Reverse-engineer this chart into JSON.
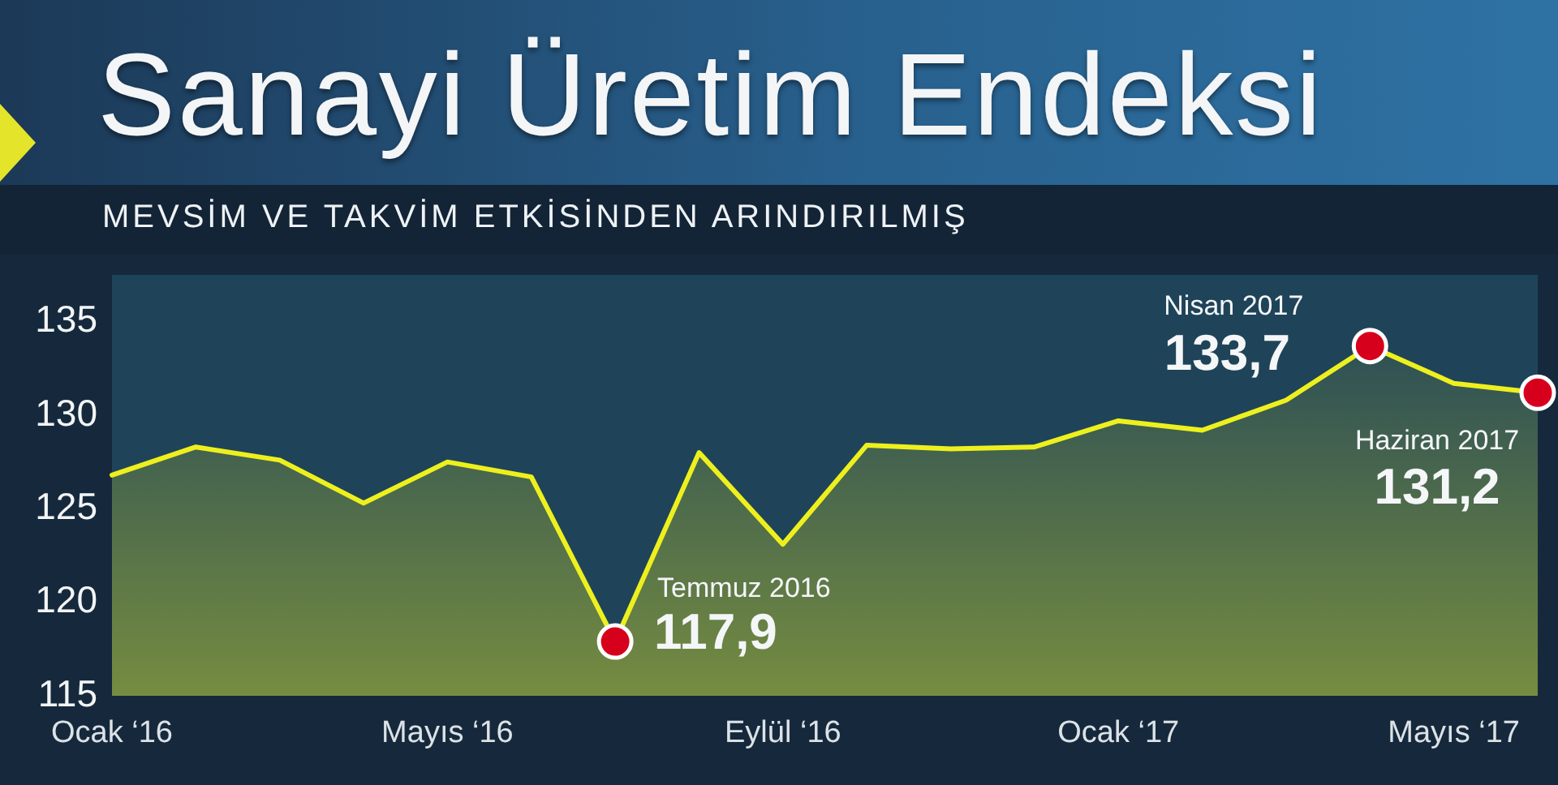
{
  "chart_data": {
    "type": "area",
    "title": "Sanayi Üretim Endeksi",
    "subtitle": "MEVSİM VE TAKVİM ETKİSİNDEN ARINDIRILMIŞ",
    "x": [
      "2016-01",
      "2016-02",
      "2016-03",
      "2016-04",
      "2016-05",
      "2016-06",
      "2016-07",
      "2016-08",
      "2016-09",
      "2016-10",
      "2016-11",
      "2016-12",
      "2017-01",
      "2017-02",
      "2017-03",
      "2017-04",
      "2017-05",
      "2017-06"
    ],
    "series": [
      {
        "color": "#eef01e",
        "marker": "none",
        "values": [
          126.8,
          128.3,
          127.6,
          125.3,
          127.5,
          126.7,
          117.9,
          128.0,
          123.1,
          128.4,
          128.2,
          128.3,
          129.7,
          129.2,
          130.8,
          133.7,
          131.7,
          131.2
        ]
      },
      {
        "type": "scatter",
        "color": "#d6001c",
        "marker": "circle",
        "x": [
          "2016-07",
          "2017-04",
          "2017-06"
        ],
        "values": [
          117.9,
          133.7,
          131.2
        ],
        "value_labels": [
          "117,9",
          "133,7",
          "131,2"
        ]
      }
    ],
    "annotations": [
      {
        "text": "Temmuz 2016",
        "x": "2016-07",
        "y": 117.9
      },
      {
        "text": "Nisan 2017",
        "x": "2017-04",
        "y": 133.7
      },
      {
        "text": "Haziran 2017",
        "x": "2017-06",
        "y": 131.2
      }
    ],
    "xlim": [
      "2016-01",
      "2017-06"
    ],
    "xticks": [
      {
        "value": "2016-01",
        "label": "Ocak ‘16"
      },
      {
        "value": "2016-05",
        "label": "Mayıs ‘16"
      },
      {
        "value": "2016-09",
        "label": "Eylül ‘16"
      },
      {
        "value": "2017-01",
        "label": "Ocak ‘17"
      },
      {
        "value": "2017-05",
        "label": "Mayıs ‘17"
      }
    ],
    "ylim": [
      115,
      137.5
    ],
    "yticks": [
      115,
      120,
      125,
      130,
      135
    ],
    "grid": false,
    "legend": false
  }
}
